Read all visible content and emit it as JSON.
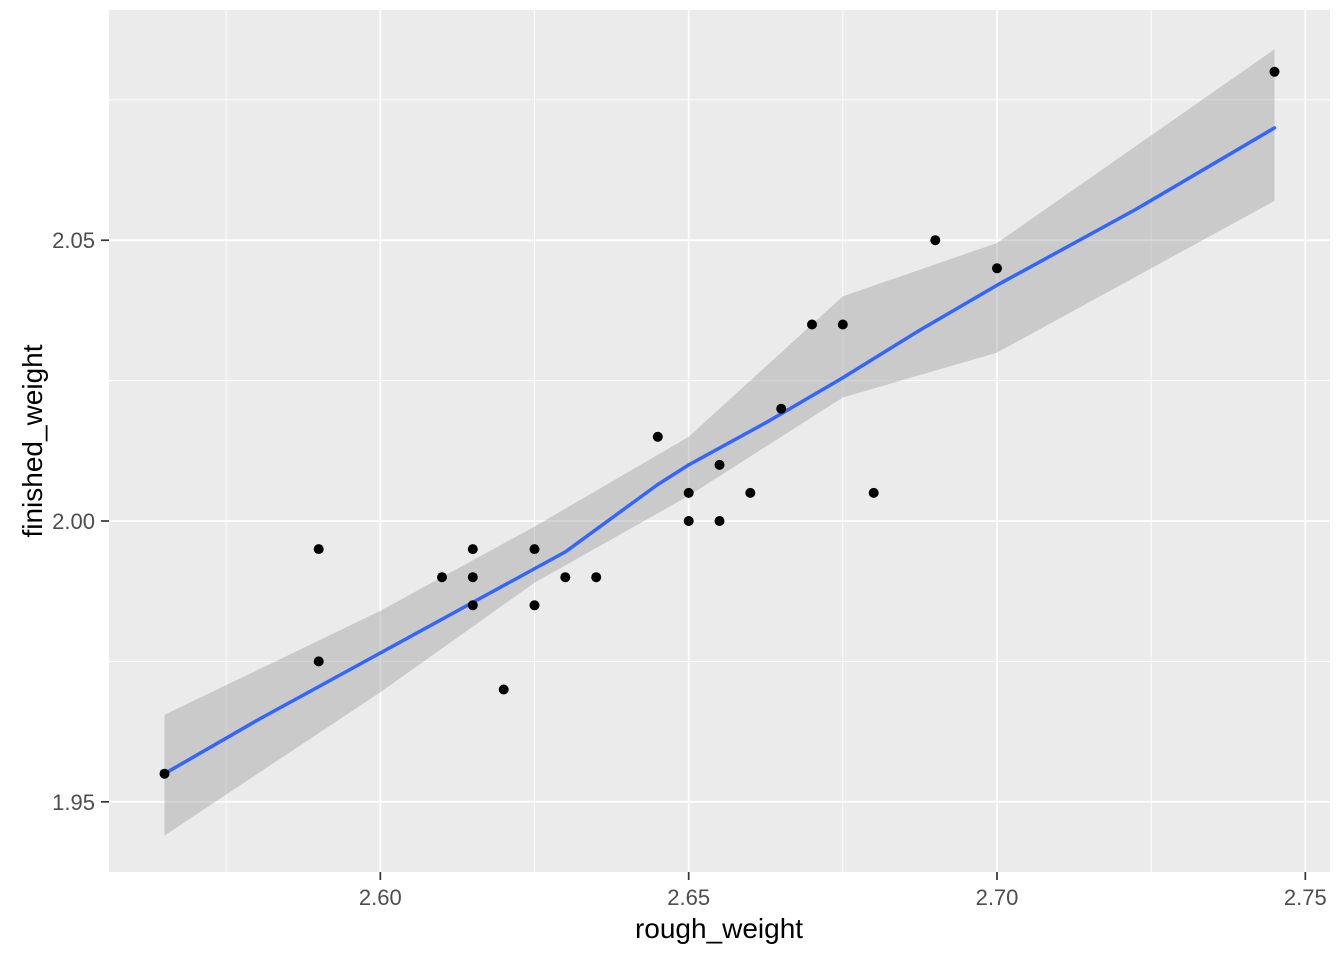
{
  "chart_data": {
    "type": "scatter",
    "title": "",
    "xlabel": "rough_weight",
    "ylabel": "finished_weight",
    "legend": "none",
    "grid": "major-and-minor",
    "xlim": [
      2.556,
      2.754
    ],
    "ylim": [
      1.9375,
      2.091
    ],
    "x_ticks": {
      "values": [
        2.6,
        2.65,
        2.7,
        2.75
      ],
      "labels": [
        "2.60",
        "2.65",
        "2.70",
        "2.75"
      ],
      "minor": [
        2.575,
        2.625,
        2.675,
        2.725
      ]
    },
    "y_ticks": {
      "values": [
        1.95,
        2.0,
        2.05
      ],
      "labels": [
        "1.95",
        "2.00",
        "2.05"
      ],
      "minor": [
        1.975,
        2.025,
        2.075
      ]
    },
    "points": [
      [
        2.565,
        1.955
      ],
      [
        2.59,
        1.995
      ],
      [
        2.59,
        1.975
      ],
      [
        2.61,
        1.99
      ],
      [
        2.615,
        1.995
      ],
      [
        2.615,
        1.99
      ],
      [
        2.615,
        1.985
      ],
      [
        2.62,
        1.97
      ],
      [
        2.625,
        1.995
      ],
      [
        2.625,
        1.985
      ],
      [
        2.63,
        1.99
      ],
      [
        2.635,
        1.99
      ],
      [
        2.645,
        2.015
      ],
      [
        2.65,
        2.005
      ],
      [
        2.65,
        2.0
      ],
      [
        2.655,
        2.01
      ],
      [
        2.655,
        2.0
      ],
      [
        2.66,
        2.005
      ],
      [
        2.665,
        2.02
      ],
      [
        2.67,
        2.035
      ],
      [
        2.675,
        2.035
      ],
      [
        2.68,
        2.005
      ],
      [
        2.69,
        2.05
      ],
      [
        2.7,
        2.045
      ],
      [
        2.745,
        2.08
      ]
    ],
    "smooth_line": [
      [
        2.565,
        1.955
      ],
      [
        2.58,
        1.9645
      ],
      [
        2.6,
        1.9765
      ],
      [
        2.615,
        1.9855
      ],
      [
        2.63,
        1.9945
      ],
      [
        2.645,
        2.0065
      ],
      [
        2.65,
        2.01
      ],
      [
        2.6625,
        2.0175
      ],
      [
        2.675,
        2.0255
      ],
      [
        2.6875,
        2.034
      ],
      [
        2.7,
        2.042
      ],
      [
        2.7225,
        2.0555
      ],
      [
        2.745,
        2.07
      ]
    ],
    "ribbon_upper": [
      [
        2.565,
        1.9655
      ],
      [
        2.6,
        1.984
      ],
      [
        2.625,
        1.999
      ],
      [
        2.65,
        2.015
      ],
      [
        2.675,
        2.04
      ],
      [
        2.7,
        2.0495
      ],
      [
        2.745,
        2.084
      ]
    ],
    "ribbon_lower": [
      [
        2.565,
        1.944
      ],
      [
        2.6,
        1.9695
      ],
      [
        2.625,
        1.989
      ],
      [
        2.65,
        2.0045
      ],
      [
        2.675,
        2.022
      ],
      [
        2.7,
        2.03
      ],
      [
        2.745,
        2.057
      ]
    ],
    "colors": {
      "panel_bg": "#EBEBEB",
      "grid": "#FFFFFF",
      "ribbon": "#999999",
      "ribbon_opacity": 0.4,
      "smooth_line": "#3366FF",
      "point": "#000000",
      "tick_mark": "#333333",
      "tick_label": "#4D4D4D",
      "axis_title": "#000000",
      "outer_bg": "#FFFFFF"
    }
  }
}
